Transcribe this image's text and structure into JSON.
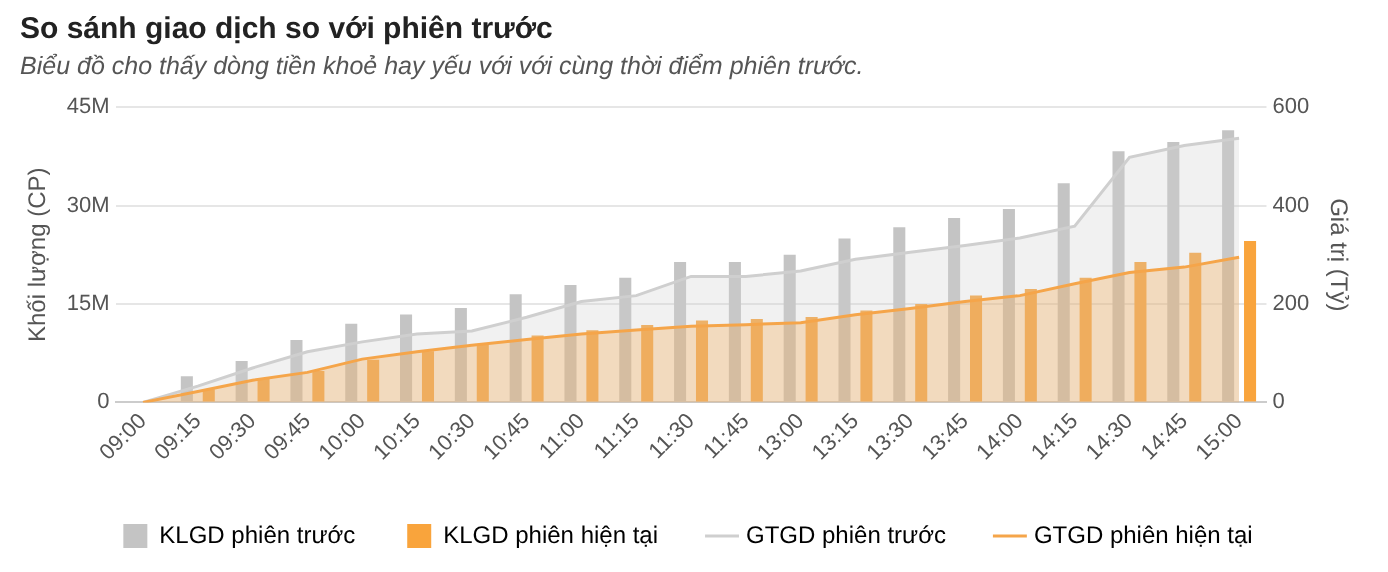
{
  "chart_data": {
    "type": "bar",
    "title": "So sánh giao dịch so với phiên trước",
    "subtitle": "Biểu đồ cho thấy dòng tiền khoẻ hay yếu với với cùng thời điểm phiên trước.",
    "ylabel": "Khối lượng (CP)",
    "y2label": "Giá trị (Tỷ)",
    "categories": [
      "09:00",
      "09:15",
      "09:30",
      "09:45",
      "10:00",
      "10:15",
      "10:30",
      "10:45",
      "11:00",
      "11:15",
      "11:30",
      "11:45",
      "13:00",
      "13:15",
      "13:30",
      "13:45",
      "14:00",
      "14:15",
      "14:30",
      "14:45",
      "15:00"
    ],
    "series": [
      {
        "name": "KLGD phiên trước",
        "color": "#c4c4c4",
        "values": [
          0,
          4,
          6.3,
          9.5,
          12,
          13.4,
          14.4,
          16.5,
          17.9,
          19,
          21.4,
          21.4,
          22.5,
          25,
          26.7,
          28.1,
          29.5,
          33.4,
          38.3,
          39.7,
          41.5
        ]
      },
      {
        "name": "KLGD phiên hiện tại",
        "color": "#f9a43c",
        "values": [
          0,
          2,
          3.7,
          4.8,
          6.5,
          7.8,
          8.8,
          10.2,
          11,
          11.8,
          12.5,
          12.7,
          13,
          14,
          15,
          16.3,
          17.3,
          19,
          21.4,
          22.8,
          24.6
        ]
      },
      {
        "name": "GTGD phiên trước",
        "type": "area",
        "axis": "y2",
        "color": "#cfcfcf",
        "values": [
          0,
          33,
          70,
          103,
          123,
          139,
          145,
          173,
          205,
          217,
          256,
          256,
          267,
          291,
          305,
          319,
          334,
          358,
          498,
          522,
          537
        ]
      },
      {
        "name": "GTGD phiên hiện tại",
        "type": "area",
        "axis": "y2",
        "color": "#f5a54a",
        "values": [
          0,
          22,
          45,
          61,
          88,
          103,
          116,
          128,
          139,
          147,
          155,
          158,
          162,
          178,
          191,
          205,
          217,
          241,
          264,
          275,
          295
        ]
      }
    ],
    "ylim": [
      0,
      45
    ],
    "yticks": [
      0,
      {
        "value": 15,
        "label": "15M"
      },
      {
        "value": 30,
        "label": "30M"
      },
      {
        "value": 45,
        "label": "45M"
      }
    ],
    "y2lim": [
      0,
      600
    ],
    "y2ticks": [
      0,
      200,
      400,
      600
    ],
    "grid": "y",
    "legend": "bottom",
    "marker": "none"
  }
}
